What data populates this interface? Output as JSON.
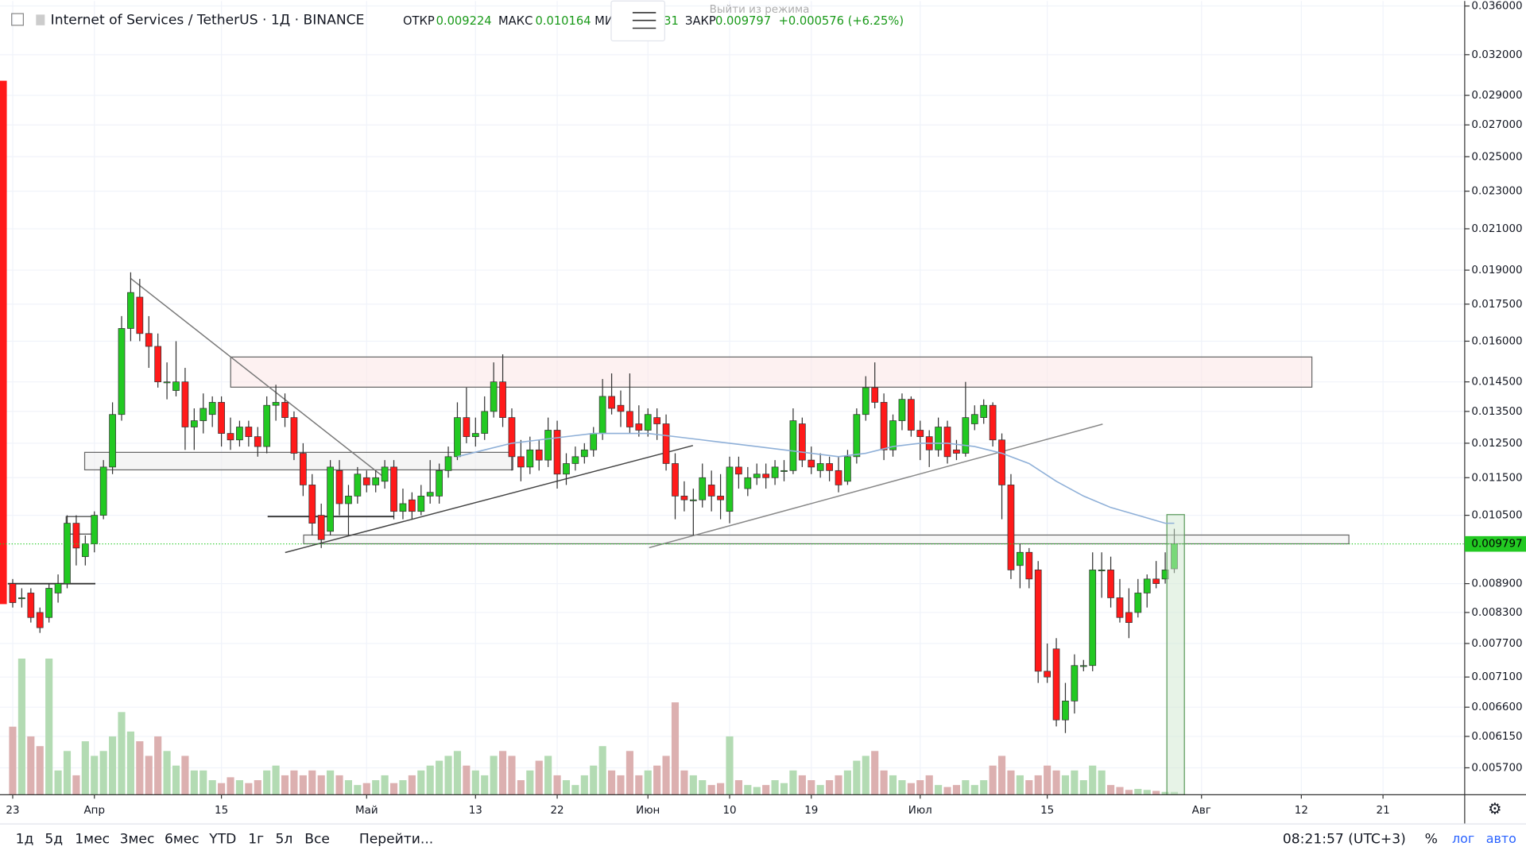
{
  "header": {
    "symbol": "Internet of Services / TetherUS · 1Д · BINANCE",
    "open_label": "ОТКР",
    "open": "0.009224",
    "high_label": "МАКС",
    "high": "0.010164",
    "low_label": "МИ",
    "low_tail": "31",
    "close_label": "ЗАКР",
    "close": "0.009797",
    "change": "+0.000576 (+6.25%)",
    "popup": "Выйти из режима"
  },
  "chart_data": {
    "type": "candlestick",
    "log_scale": true,
    "grid": true,
    "up_color": "#22c922",
    "down_color": "#ff1a1a",
    "volume_up_color": "#b3dbb3",
    "volume_down_color": "#dcb0b0",
    "xlim": [
      -1.4,
      160
    ],
    "xticks": [
      {
        "value": 0,
        "label": "23"
      },
      {
        "value": 9,
        "label": "Апр"
      },
      {
        "value": 23,
        "label": "15"
      },
      {
        "value": 39,
        "label": "Май"
      },
      {
        "value": 51,
        "label": "13"
      },
      {
        "value": 60,
        "label": "22"
      },
      {
        "value": 70,
        "label": "Июн"
      },
      {
        "value": 79,
        "label": "10"
      },
      {
        "value": 88,
        "label": "19"
      },
      {
        "value": 100,
        "label": "Июл"
      },
      {
        "value": 114,
        "label": "15"
      },
      {
        "value": 131,
        "label": "Авг"
      },
      {
        "value": 142,
        "label": "12"
      },
      {
        "value": 151,
        "label": "21"
      }
    ],
    "ylim": [
      0.00534,
      0.03644
    ],
    "yticks": [
      {
        "value": 0.036,
        "label": "0.036000"
      },
      {
        "value": 0.032,
        "label": "0.032000"
      },
      {
        "value": 0.029,
        "label": "0.029000"
      },
      {
        "value": 0.027,
        "label": "0.027000"
      },
      {
        "value": 0.025,
        "label": "0.025000"
      },
      {
        "value": 0.023,
        "label": "0.023000"
      },
      {
        "value": 0.021,
        "label": "0.021000"
      },
      {
        "value": 0.019,
        "label": "0.019000"
      },
      {
        "value": 0.0175,
        "label": "0.017500"
      },
      {
        "value": 0.016,
        "label": "0.016000"
      },
      {
        "value": 0.0145,
        "label": "0.014500"
      },
      {
        "value": 0.0135,
        "label": "0.013500"
      },
      {
        "value": 0.0125,
        "label": "0.012500"
      },
      {
        "value": 0.0115,
        "label": "0.011500"
      },
      {
        "value": 0.0105,
        "label": "0.010500"
      },
      {
        "value": 0.0089,
        "label": "0.008900"
      },
      {
        "value": 0.0083,
        "label": "0.008300"
      },
      {
        "value": 0.0077,
        "label": "0.007700"
      },
      {
        "value": 0.0071,
        "label": "0.007100"
      },
      {
        "value": 0.0066,
        "label": "0.006600"
      },
      {
        "value": 0.00615,
        "label": "0.006150"
      },
      {
        "value": 0.0057,
        "label": "0.005700"
      }
    ],
    "price_line": {
      "value": 0.009797,
      "label": "0.009797",
      "color": "#22c922"
    },
    "candles": [
      [
        0.0089,
        0.009,
        0.0084,
        0.0085
      ],
      [
        0.0086,
        0.0088,
        0.0084,
        0.0086
      ],
      [
        0.0087,
        0.0088,
        0.0081,
        0.0082
      ],
      [
        0.0083,
        0.0084,
        0.0079,
        0.008
      ],
      [
        0.0082,
        0.0089,
        0.0081,
        0.0088
      ],
      [
        0.0087,
        0.0091,
        0.0085,
        0.0089
      ],
      [
        0.0089,
        0.0105,
        0.0088,
        0.0103
      ],
      [
        0.0103,
        0.0105,
        0.0093,
        0.0097
      ],
      [
        0.0095,
        0.01,
        0.0093,
        0.0098
      ],
      [
        0.0098,
        0.0106,
        0.0096,
        0.0105
      ],
      [
        0.0105,
        0.012,
        0.0104,
        0.0118
      ],
      [
        0.0118,
        0.0138,
        0.0116,
        0.0134
      ],
      [
        0.0134,
        0.017,
        0.0132,
        0.0165
      ],
      [
        0.0165,
        0.0189,
        0.016,
        0.018
      ],
      [
        0.0178,
        0.0186,
        0.016,
        0.0163
      ],
      [
        0.0163,
        0.017,
        0.015,
        0.0158
      ],
      [
        0.0158,
        0.0163,
        0.0143,
        0.0145
      ],
      [
        0.0145,
        0.0152,
        0.0139,
        0.0145
      ],
      [
        0.0142,
        0.016,
        0.014,
        0.0145
      ],
      [
        0.0145,
        0.015,
        0.0123,
        0.013
      ],
      [
        0.013,
        0.0136,
        0.0123,
        0.0132
      ],
      [
        0.0132,
        0.0141,
        0.0128,
        0.0136
      ],
      [
        0.0134,
        0.014,
        0.013,
        0.0138
      ],
      [
        0.0138,
        0.014,
        0.0124,
        0.0128
      ],
      [
        0.0128,
        0.0133,
        0.0123,
        0.0126
      ],
      [
        0.0126,
        0.0132,
        0.0124,
        0.013
      ],
      [
        0.013,
        0.0132,
        0.0124,
        0.0127
      ],
      [
        0.0127,
        0.013,
        0.0121,
        0.0124
      ],
      [
        0.0124,
        0.014,
        0.0122,
        0.0137
      ],
      [
        0.0137,
        0.0144,
        0.0132,
        0.0138
      ],
      [
        0.0138,
        0.0141,
        0.013,
        0.0133
      ],
      [
        0.0133,
        0.0135,
        0.012,
        0.0122
      ],
      [
        0.0122,
        0.0125,
        0.011,
        0.0113
      ],
      [
        0.0113,
        0.0116,
        0.01,
        0.0103
      ],
      [
        0.0105,
        0.0108,
        0.0097,
        0.0099
      ],
      [
        0.0101,
        0.012,
        0.01,
        0.0118
      ],
      [
        0.0117,
        0.012,
        0.0105,
        0.0108
      ],
      [
        0.0108,
        0.0113,
        0.01,
        0.011
      ],
      [
        0.011,
        0.0118,
        0.0108,
        0.0116
      ],
      [
        0.0115,
        0.0117,
        0.0111,
        0.0113
      ],
      [
        0.0113,
        0.0117,
        0.0111,
        0.0115
      ],
      [
        0.0114,
        0.012,
        0.0112,
        0.0118
      ],
      [
        0.0118,
        0.012,
        0.0104,
        0.0106
      ],
      [
        0.0106,
        0.0112,
        0.0104,
        0.0108
      ],
      [
        0.0109,
        0.0111,
        0.0104,
        0.0106
      ],
      [
        0.0106,
        0.0113,
        0.0105,
        0.011
      ],
      [
        0.011,
        0.012,
        0.0108,
        0.0111
      ],
      [
        0.011,
        0.0119,
        0.0108,
        0.0117
      ],
      [
        0.0117,
        0.0124,
        0.0115,
        0.0121
      ],
      [
        0.0121,
        0.0138,
        0.012,
        0.0133
      ],
      [
        0.0133,
        0.0143,
        0.0125,
        0.0127
      ],
      [
        0.0127,
        0.0133,
        0.0124,
        0.0128
      ],
      [
        0.0128,
        0.014,
        0.0126,
        0.0135
      ],
      [
        0.0135,
        0.0152,
        0.0133,
        0.0145
      ],
      [
        0.0145,
        0.0155,
        0.013,
        0.0133
      ],
      [
        0.0133,
        0.0136,
        0.0117,
        0.0121
      ],
      [
        0.0121,
        0.0126,
        0.0114,
        0.0118
      ],
      [
        0.0118,
        0.0127,
        0.0116,
        0.0123
      ],
      [
        0.0123,
        0.0126,
        0.0117,
        0.012
      ],
      [
        0.012,
        0.0133,
        0.0118,
        0.0129
      ],
      [
        0.0129,
        0.0132,
        0.0112,
        0.0116
      ],
      [
        0.0116,
        0.0122,
        0.0113,
        0.0119
      ],
      [
        0.0119,
        0.0124,
        0.0117,
        0.0121
      ],
      [
        0.0121,
        0.0125,
        0.0119,
        0.0123
      ],
      [
        0.0123,
        0.013,
        0.0121,
        0.0128
      ],
      [
        0.0128,
        0.0146,
        0.0126,
        0.014
      ],
      [
        0.014,
        0.0148,
        0.0134,
        0.0136
      ],
      [
        0.0137,
        0.0142,
        0.013,
        0.0135
      ],
      [
        0.0135,
        0.0148,
        0.0128,
        0.013
      ],
      [
        0.0131,
        0.0137,
        0.0127,
        0.0129
      ],
      [
        0.0129,
        0.0136,
        0.0127,
        0.0134
      ],
      [
        0.0133,
        0.0136,
        0.0126,
        0.0131
      ],
      [
        0.0131,
        0.0134,
        0.0117,
        0.0119
      ],
      [
        0.0119,
        0.0122,
        0.0104,
        0.011
      ],
      [
        0.011,
        0.0114,
        0.0106,
        0.0109
      ],
      [
        0.0109,
        0.0112,
        0.01,
        0.0109
      ],
      [
        0.0109,
        0.0119,
        0.0107,
        0.0115
      ],
      [
        0.0113,
        0.0117,
        0.0106,
        0.011
      ],
      [
        0.011,
        0.0116,
        0.0104,
        0.0109
      ],
      [
        0.0106,
        0.0121,
        0.0103,
        0.0118
      ],
      [
        0.0118,
        0.0121,
        0.0112,
        0.0116
      ],
      [
        0.0112,
        0.0118,
        0.011,
        0.0115
      ],
      [
        0.0115,
        0.0119,
        0.0113,
        0.0116
      ],
      [
        0.0116,
        0.0119,
        0.0112,
        0.0115
      ],
      [
        0.0115,
        0.012,
        0.0113,
        0.0118
      ],
      [
        0.0117,
        0.012,
        0.0114,
        0.0117
      ],
      [
        0.0117,
        0.0136,
        0.0116,
        0.0132
      ],
      [
        0.0131,
        0.0133,
        0.0118,
        0.012
      ],
      [
        0.012,
        0.0124,
        0.0116,
        0.0118
      ],
      [
        0.0117,
        0.0122,
        0.0115,
        0.0119
      ],
      [
        0.0119,
        0.0121,
        0.0114,
        0.0117
      ],
      [
        0.0117,
        0.0121,
        0.0111,
        0.0113
      ],
      [
        0.0114,
        0.0123,
        0.0113,
        0.0121
      ],
      [
        0.0121,
        0.0136,
        0.0119,
        0.0134
      ],
      [
        0.0134,
        0.0147,
        0.0132,
        0.0143
      ],
      [
        0.0143,
        0.0152,
        0.0136,
        0.0138
      ],
      [
        0.0138,
        0.0141,
        0.012,
        0.0123
      ],
      [
        0.0123,
        0.0134,
        0.0121,
        0.0132
      ],
      [
        0.0132,
        0.0141,
        0.0129,
        0.0139
      ],
      [
        0.0139,
        0.014,
        0.0127,
        0.0129
      ],
      [
        0.0129,
        0.0132,
        0.012,
        0.0127
      ],
      [
        0.0127,
        0.0129,
        0.0118,
        0.0123
      ],
      [
        0.0123,
        0.0133,
        0.0121,
        0.013
      ],
      [
        0.013,
        0.0132,
        0.0119,
        0.0121
      ],
      [
        0.0123,
        0.0126,
        0.012,
        0.0122
      ],
      [
        0.0122,
        0.0145,
        0.0121,
        0.0133
      ],
      [
        0.0131,
        0.0137,
        0.0129,
        0.0134
      ],
      [
        0.0133,
        0.0139,
        0.0131,
        0.0137
      ],
      [
        0.0137,
        0.0138,
        0.0124,
        0.0126
      ],
      [
        0.0126,
        0.0128,
        0.0104,
        0.0113
      ],
      [
        0.0113,
        0.0116,
        0.009,
        0.0092
      ],
      [
        0.0093,
        0.0098,
        0.0088,
        0.0096
      ],
      [
        0.0096,
        0.0097,
        0.0088,
        0.009
      ],
      [
        0.0092,
        0.0094,
        0.007,
        0.0072
      ],
      [
        0.0072,
        0.0077,
        0.007,
        0.0071
      ],
      [
        0.0076,
        0.0078,
        0.0063,
        0.0064
      ],
      [
        0.0064,
        0.007,
        0.0062,
        0.0067
      ],
      [
        0.0067,
        0.0075,
        0.0065,
        0.0073
      ],
      [
        0.0073,
        0.0074,
        0.0072,
        0.0073
      ],
      [
        0.0073,
        0.0096,
        0.0072,
        0.0092
      ],
      [
        0.0092,
        0.0096,
        0.0086,
        0.0092
      ],
      [
        0.0092,
        0.0095,
        0.0084,
        0.0086
      ],
      [
        0.0086,
        0.009,
        0.0081,
        0.0082
      ],
      [
        0.0083,
        0.0088,
        0.0078,
        0.0081
      ],
      [
        0.0083,
        0.009,
        0.0082,
        0.0087
      ],
      [
        0.0087,
        0.0091,
        0.0084,
        0.009
      ],
      [
        0.009,
        0.0094,
        0.0088,
        0.0089
      ],
      [
        0.009,
        0.0096,
        0.0089,
        0.0092
      ],
      [
        0.009224,
        0.010164,
        0.009131,
        0.009797
      ]
    ],
    "volumes": [
      70,
      140,
      60,
      50,
      140,
      25,
      45,
      20,
      55,
      40,
      45,
      60,
      85,
      65,
      55,
      40,
      60,
      45,
      30,
      40,
      25,
      25,
      15,
      12,
      18,
      15,
      12,
      15,
      25,
      30,
      20,
      25,
      20,
      25,
      20,
      25,
      20,
      15,
      10,
      12,
      15,
      20,
      12,
      15,
      20,
      25,
      30,
      35,
      40,
      45,
      30,
      25,
      20,
      40,
      45,
      40,
      15,
      25,
      35,
      40,
      20,
      15,
      10,
      20,
      30,
      50,
      25,
      20,
      45,
      20,
      25,
      30,
      40,
      95,
      25,
      20,
      15,
      10,
      12,
      60,
      15,
      10,
      8,
      10,
      15,
      12,
      25,
      20,
      15,
      10,
      15,
      20,
      25,
      35,
      40,
      45,
      25,
      20,
      15,
      12,
      15,
      20,
      10,
      8,
      10,
      15,
      10,
      15,
      30,
      40,
      25,
      20,
      15,
      20,
      30,
      25,
      20,
      25,
      15,
      30,
      25,
      10,
      8,
      5,
      6,
      5,
      4,
      3,
      3
    ],
    "moving_average": {
      "color": "#8fb0d8",
      "x": [
        49,
        52,
        55,
        58,
        61,
        64,
        67,
        70,
        73,
        76,
        79,
        82,
        85,
        88,
        91,
        94,
        97,
        100,
        103,
        106,
        109,
        112,
        115,
        118,
        121,
        124,
        127,
        128
      ],
      "values": [
        0.0121,
        0.0123,
        0.0125,
        0.0126,
        0.0127,
        0.0128,
        0.0128,
        0.0128,
        0.0127,
        0.0126,
        0.0125,
        0.0124,
        0.0123,
        0.0122,
        0.0121,
        0.0122,
        0.0124,
        0.0125,
        0.0125,
        0.0124,
        0.0122,
        0.0119,
        0.0114,
        0.011,
        0.0107,
        0.0105,
        0.0103,
        0.0103
      ]
    }
  },
  "toolbar": {
    "ranges": [
      "1д",
      "5д",
      "1мес",
      "3мес",
      "6мес",
      "YTD",
      "1г",
      "5л",
      "Все"
    ],
    "goto": "Перейти...",
    "time": "08:21:57 (UTC+3)",
    "percent": "%",
    "log": "лог",
    "auto": "авто"
  }
}
